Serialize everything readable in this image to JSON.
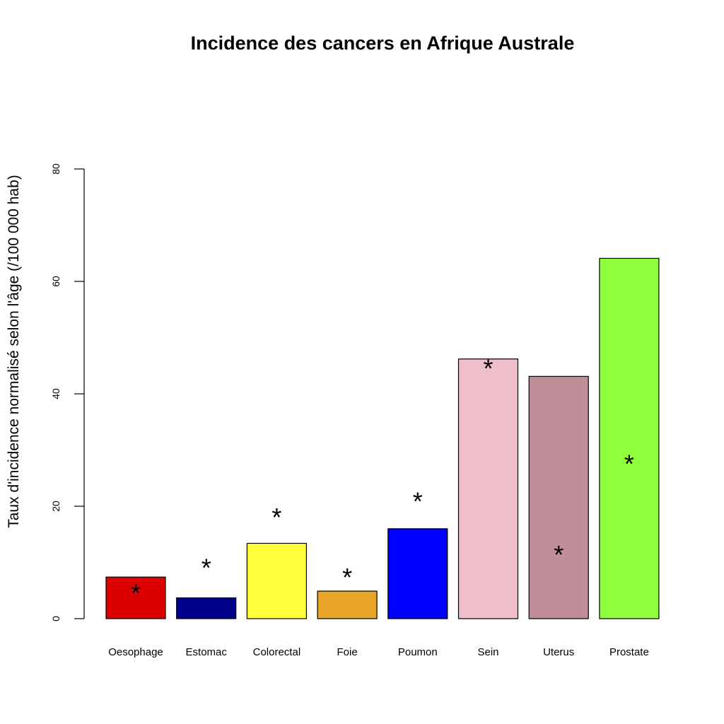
{
  "chart_data": {
    "type": "bar",
    "title": "Incidence des cancers en Afrique Australe",
    "xlabel": "",
    "ylabel": "Taux d'incidence normalisé selon l'âge (/100 000 hab)",
    "ylim": [
      0,
      80
    ],
    "yticks": [
      0,
      20,
      40,
      60,
      80
    ],
    "grid": false,
    "categories": [
      "Oesophage",
      "Estomac",
      "Colorectal",
      "Foie",
      "Poumon",
      "Sein",
      "Uterus",
      "Prostate"
    ],
    "values": [
      7.4,
      3.7,
      13.4,
      4.9,
      16.0,
      46.2,
      43.1,
      64.1
    ],
    "markers": {
      "symbol": "*",
      "values": [
        6.0,
        10.5,
        19.5,
        8.8,
        22.3,
        46.0,
        12.8,
        29.0
      ]
    },
    "colors": [
      "#dd0000",
      "#00008b",
      "#ffff3b",
      "#e8a427",
      "#0000ff",
      "#efbfc9",
      "#bf8e98",
      "#8fff3b"
    ]
  }
}
